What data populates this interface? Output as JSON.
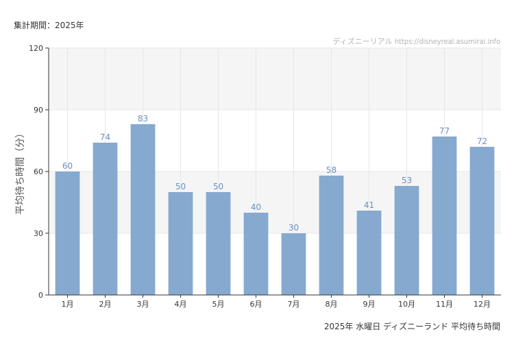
{
  "header": {
    "period_label": "集計期間：2025年",
    "credit": "ディズニーリアル https://disneyreal.asumirai.info"
  },
  "footer": {
    "caption": "2025年 水曜日 ディズニーランド 平均待ち時間"
  },
  "colors": {
    "bar": "#86a9cf",
    "data_label": "#6b8fc4",
    "band": "#f5f5f5",
    "grid": "#e6e6e6",
    "axis": "#333333"
  },
  "chart_data": {
    "type": "bar",
    "title": "2025年 水曜日 ディズニーランド 平均待ち時間",
    "xlabel": "",
    "ylabel": "平均待ち時間（分）",
    "categories": [
      "1月",
      "2月",
      "3月",
      "4月",
      "5月",
      "6月",
      "7月",
      "8月",
      "9月",
      "10月",
      "11月",
      "12月"
    ],
    "values": [
      60,
      74,
      83,
      50,
      50,
      40,
      30,
      58,
      41,
      53,
      77,
      72
    ],
    "ylim": [
      0,
      120
    ],
    "yticks": [
      0,
      30,
      60,
      90,
      120
    ],
    "grid": true,
    "legend": "none"
  }
}
